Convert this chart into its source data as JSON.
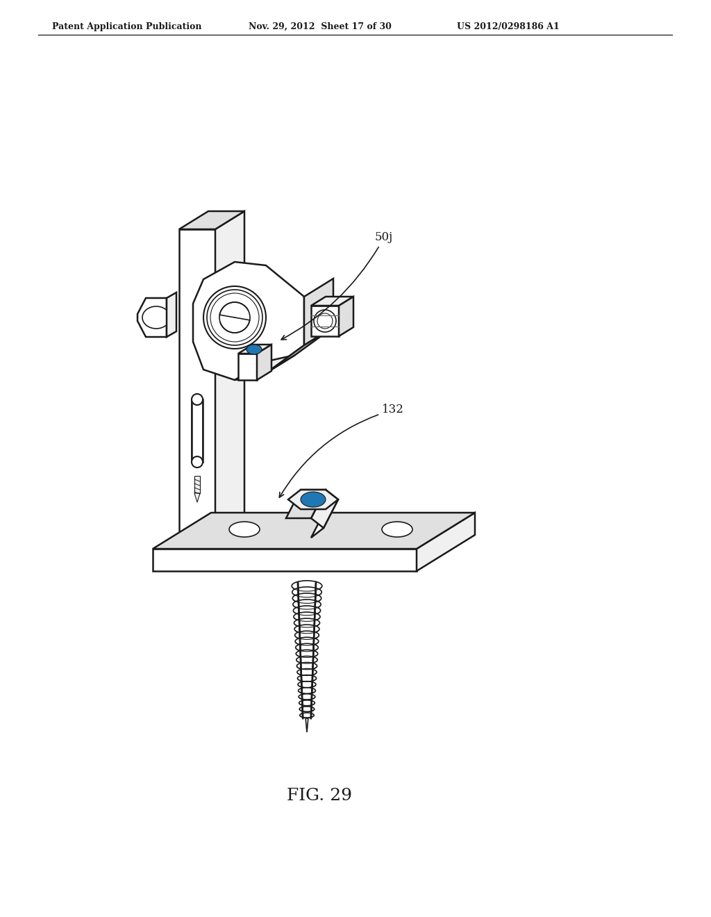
{
  "header_left": "Patent Application Publication",
  "header_mid": "Nov. 29, 2012  Sheet 17 of 30",
  "header_right": "US 2012/0298186 A1",
  "label_50j": "50j",
  "label_132": "132",
  "fig_label": "FIG. 29",
  "bg_color": "#ffffff",
  "line_color": "#1a1a1a",
  "fill_white": "#ffffff",
  "fill_light": "#f0f0f0",
  "fill_mid": "#e0e0e0",
  "fill_dark": "#c8c8c8"
}
